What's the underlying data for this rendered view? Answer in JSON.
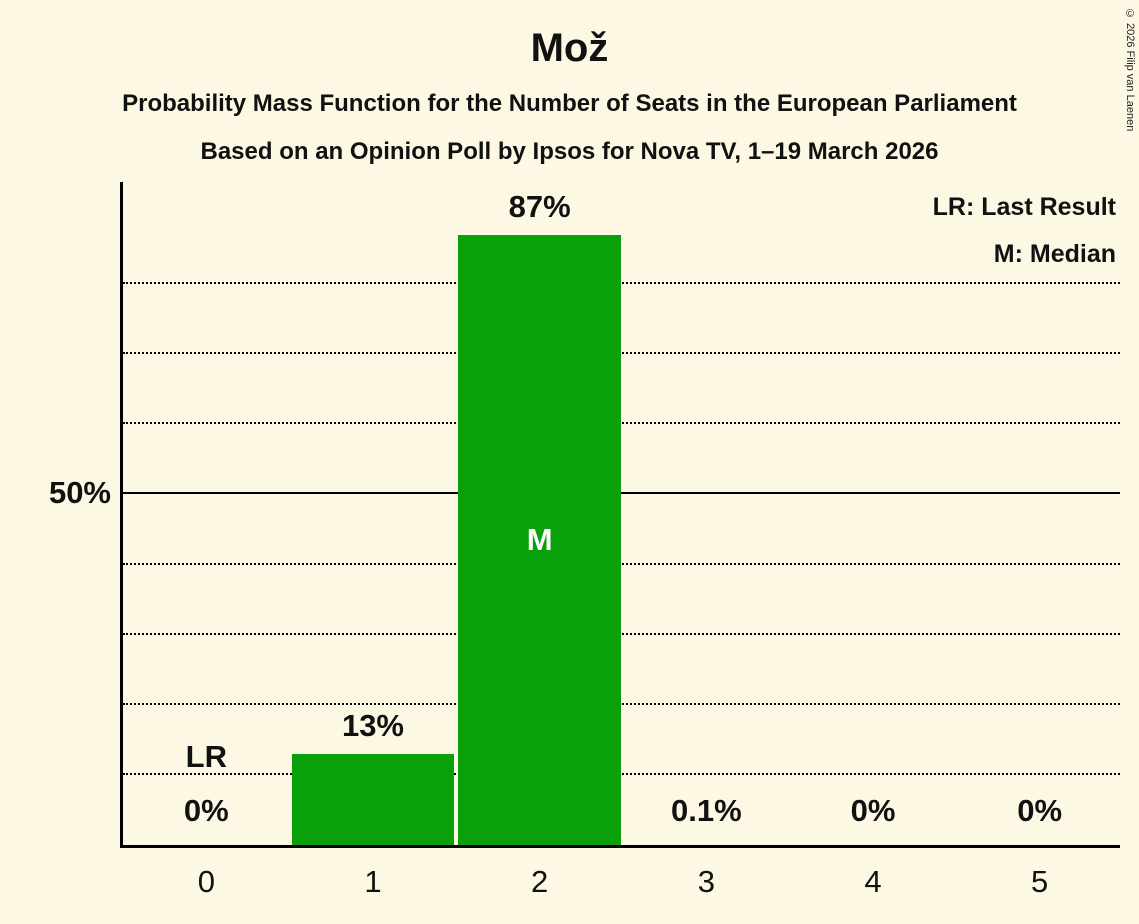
{
  "copyright": "© 2026 Filip van Laenen",
  "header": {
    "title": "Mož",
    "subtitle1": "Probability Mass Function for the Number of Seats in the European Parliament",
    "subtitle2": "Based on an Opinion Poll by Ipsos for Nova TV, 1–19 March 2026"
  },
  "legend": {
    "lr": "LR: Last Result",
    "m": "M: Median"
  },
  "colors": {
    "background": "#FCF8E3",
    "bar": "#0AA00A",
    "axis": "#000000",
    "median_text": "#FFFFFF"
  },
  "chart_data": {
    "type": "bar",
    "title": "Mož",
    "categories": [
      "0",
      "1",
      "2",
      "3",
      "4",
      "5"
    ],
    "values": [
      0,
      13,
      87,
      0.1,
      0,
      0
    ],
    "value_labels": [
      "0%",
      "13%",
      "87%",
      "0.1%",
      "0%",
      "0%"
    ],
    "ylim": [
      0,
      95
    ],
    "y_major_line": 50,
    "y_major_label": "50%",
    "gridlines_pct": [
      10,
      20,
      30,
      40,
      60,
      70,
      80
    ],
    "grid": "dotted",
    "legend_position": "top-right",
    "median_index": 2,
    "median_marker": "M",
    "last_result_index": 0,
    "last_result_marker": "LR"
  }
}
